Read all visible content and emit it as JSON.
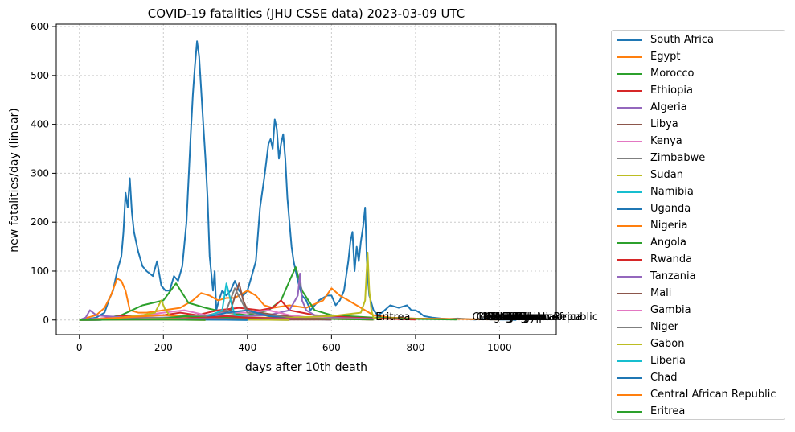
{
  "chart_data": {
    "type": "line",
    "title": "COVID-19 fatalities (JHU CSSE data) 2023-03-09 UTC",
    "xlabel": "days after 10th death",
    "ylabel": "new fatalities/day (linear)",
    "xlim": [
      -55,
      1135
    ],
    "ylim": [
      -30,
      605
    ],
    "xticks": [
      0,
      200,
      400,
      600,
      800,
      1000
    ],
    "yticks": [
      0,
      100,
      200,
      300,
      400,
      500,
      600
    ],
    "grid": true,
    "legend_position": "outside-right",
    "series": [
      {
        "name": "South Africa",
        "color": "#1f77b4",
        "x": [
          0,
          20,
          40,
          60,
          70,
          80,
          90,
          100,
          105,
          110,
          115,
          120,
          125,
          130,
          140,
          150,
          160,
          175,
          185,
          195,
          205,
          215,
          225,
          235,
          245,
          255,
          265,
          270,
          275,
          280,
          285,
          290,
          295,
          300,
          305,
          310,
          318,
          322,
          326,
          332,
          340,
          350,
          360,
          370,
          380,
          390,
          400,
          410,
          420,
          430,
          440,
          450,
          455,
          460,
          465,
          470,
          475,
          480,
          485,
          490,
          495,
          500,
          505,
          510,
          520,
          530,
          540,
          550,
          560,
          570,
          580,
          590,
          600,
          610,
          620,
          630,
          640,
          645,
          650,
          655,
          660,
          665,
          670,
          675,
          680,
          685,
          690,
          700,
          710,
          720,
          740,
          760,
          780,
          790,
          800,
          810,
          820,
          840,
          860,
          880,
          900,
          920,
          940,
          960,
          980,
          1000,
          1020,
          1040
        ],
        "y": [
          0,
          2,
          5,
          15,
          40,
          60,
          100,
          130,
          180,
          260,
          230,
          290,
          220,
          180,
          140,
          110,
          100,
          90,
          120,
          70,
          60,
          60,
          90,
          80,
          110,
          200,
          380,
          460,
          520,
          570,
          540,
          470,
          400,
          330,
          250,
          130,
          60,
          100,
          20,
          40,
          60,
          50,
          60,
          80,
          60,
          50,
          60,
          90,
          120,
          230,
          290,
          360,
          370,
          350,
          410,
          390,
          330,
          360,
          380,
          330,
          250,
          200,
          150,
          120,
          80,
          50,
          40,
          20,
          30,
          40,
          45,
          50,
          50,
          30,
          40,
          60,
          120,
          160,
          180,
          100,
          150,
          120,
          160,
          190,
          230,
          100,
          50,
          20,
          10,
          15,
          30,
          25,
          30,
          20,
          20,
          15,
          8,
          5,
          3,
          2,
          3,
          2,
          1,
          2,
          1,
          1,
          1,
          0
        ]
      },
      {
        "name": "Egypt",
        "color": "#ff7f0e",
        "x": [
          0,
          20,
          40,
          60,
          75,
          90,
          100,
          110,
          120,
          140,
          160,
          200,
          240,
          270,
          290,
          310,
          330,
          350,
          370,
          400,
          420,
          440,
          460,
          500,
          540,
          580,
          600,
          620,
          640,
          660,
          680,
          700,
          740,
          800,
          900,
          1000
        ],
        "y": [
          0,
          5,
          10,
          25,
          50,
          85,
          80,
          60,
          20,
          15,
          15,
          20,
          25,
          40,
          55,
          50,
          40,
          45,
          45,
          60,
          50,
          30,
          25,
          30,
          25,
          40,
          65,
          50,
          40,
          30,
          20,
          10,
          5,
          3,
          2,
          1
        ]
      },
      {
        "name": "Morocco",
        "color": "#2ca02c",
        "x": [
          0,
          50,
          100,
          150,
          200,
          230,
          260,
          300,
          350,
          400,
          450,
          480,
          500,
          515,
          530,
          560,
          600,
          700,
          800,
          900
        ],
        "y": [
          0,
          2,
          10,
          30,
          40,
          75,
          35,
          25,
          15,
          10,
          20,
          40,
          80,
          108,
          60,
          20,
          10,
          5,
          2,
          1
        ]
      },
      {
        "name": "Ethiopia",
        "color": "#d62728",
        "x": [
          0,
          50,
          100,
          150,
          200,
          240,
          280,
          330,
          380,
          430,
          460,
          480,
          500,
          530,
          560,
          600,
          650,
          700,
          800
        ],
        "y": [
          0,
          3,
          8,
          10,
          10,
          15,
          10,
          20,
          25,
          20,
          25,
          40,
          20,
          15,
          10,
          8,
          5,
          3,
          1
        ]
      },
      {
        "name": "Algeria",
        "color": "#9467bd",
        "x": [
          0,
          15,
          25,
          40,
          60,
          100,
          150,
          200,
          260,
          300,
          350,
          400,
          450,
          500,
          520,
          525,
          530,
          540,
          560,
          600,
          700
        ],
        "y": [
          0,
          5,
          20,
          10,
          8,
          6,
          5,
          5,
          8,
          10,
          10,
          8,
          10,
          20,
          50,
          95,
          40,
          20,
          10,
          5,
          2
        ]
      },
      {
        "name": "Libya",
        "color": "#8c564b",
        "x": [
          0,
          100,
          200,
          300,
          360,
          380,
          390,
          400,
          430,
          470,
          500,
          550,
          600,
          700
        ],
        "y": [
          0,
          2,
          3,
          5,
          20,
          75,
          40,
          20,
          15,
          10,
          8,
          5,
          3,
          1
        ]
      },
      {
        "name": "Kenya",
        "color": "#e377c2",
        "x": [
          0,
          50,
          100,
          150,
          200,
          250,
          300,
          350,
          400,
          450,
          500,
          550,
          600,
          650,
          700
        ],
        "y": [
          0,
          3,
          5,
          10,
          15,
          20,
          10,
          15,
          15,
          20,
          10,
          5,
          3,
          2,
          1
        ]
      },
      {
        "name": "Zimbabwe",
        "color": "#7f7f7f",
        "x": [
          0,
          100,
          200,
          300,
          350,
          370,
          385,
          400,
          450,
          500,
          550,
          600,
          700
        ],
        "y": [
          0,
          2,
          5,
          8,
          20,
          65,
          40,
          15,
          10,
          5,
          3,
          2,
          1
        ]
      },
      {
        "name": "Sudan",
        "color": "#bcbd22",
        "x": [
          0,
          50,
          100,
          150,
          180,
          195,
          205,
          215,
          250,
          300,
          400,
          500,
          600,
          670,
          680,
          686,
          690,
          695,
          700,
          720
        ],
        "y": [
          0,
          2,
          5,
          10,
          15,
          40,
          20,
          10,
          5,
          5,
          5,
          5,
          8,
          15,
          40,
          138,
          60,
          20,
          5,
          1
        ]
      },
      {
        "name": "Namibia",
        "color": "#17becf",
        "x": [
          0,
          100,
          200,
          300,
          340,
          350,
          360,
          370,
          400,
          500,
          600
        ],
        "y": [
          0,
          1,
          2,
          5,
          20,
          75,
          40,
          10,
          5,
          2,
          1
        ]
      },
      {
        "name": "Uganda",
        "color": "#1f77b4",
        "x": [
          0,
          100,
          200,
          300,
          350,
          400,
          450,
          500,
          600
        ],
        "y": [
          0,
          1,
          2,
          5,
          15,
          20,
          8,
          3,
          1
        ]
      },
      {
        "name": "Nigeria",
        "color": "#ff7f0e",
        "x": [
          0,
          50,
          100,
          200,
          250,
          300,
          400,
          500,
          600,
          700
        ],
        "y": [
          0,
          2,
          5,
          10,
          8,
          5,
          4,
          3,
          2,
          1
        ]
      },
      {
        "name": "Angola",
        "color": "#2ca02c",
        "x": [
          0,
          100,
          200,
          250,
          300,
          400,
          500,
          600,
          700
        ],
        "y": [
          0,
          1,
          3,
          8,
          5,
          4,
          3,
          2,
          1
        ]
      },
      {
        "name": "Rwanda",
        "color": "#d62728",
        "x": [
          0,
          100,
          200,
          300,
          350,
          400,
          500,
          600
        ],
        "y": [
          0,
          1,
          2,
          5,
          8,
          5,
          3,
          1
        ]
      },
      {
        "name": "Tanzania",
        "color": "#9467bd",
        "x": [
          0,
          100,
          200,
          300,
          400,
          500,
          600
        ],
        "y": [
          0,
          1,
          2,
          3,
          2,
          2,
          1
        ]
      },
      {
        "name": "Mali",
        "color": "#8c564b",
        "x": [
          0,
          100,
          200,
          300,
          400,
          500,
          600
        ],
        "y": [
          0,
          1,
          2,
          2,
          2,
          1,
          1
        ]
      },
      {
        "name": "Gambia",
        "color": "#e377c2",
        "x": [
          0,
          100,
          200,
          300,
          400,
          500
        ],
        "y": [
          0,
          1,
          2,
          1,
          1,
          1
        ]
      },
      {
        "name": "Niger",
        "color": "#7f7f7f",
        "x": [
          0,
          100,
          200,
          300,
          400,
          500
        ],
        "y": [
          0,
          1,
          1,
          1,
          1,
          0
        ]
      },
      {
        "name": "Gabon",
        "color": "#bcbd22",
        "x": [
          0,
          100,
          200,
          300,
          400,
          500
        ],
        "y": [
          0,
          1,
          2,
          1,
          1,
          0
        ]
      },
      {
        "name": "Liberia",
        "color": "#17becf",
        "x": [
          0,
          100,
          200,
          300,
          400
        ],
        "y": [
          0,
          1,
          1,
          1,
          0
        ]
      },
      {
        "name": "Chad",
        "color": "#1f77b4",
        "x": [
          0,
          100,
          200,
          300,
          400
        ],
        "y": [
          0,
          1,
          1,
          1,
          0
        ]
      },
      {
        "name": "Central African Republic",
        "color": "#ff7f0e",
        "x": [
          0,
          100,
          200,
          300
        ],
        "y": [
          0,
          1,
          1,
          0
        ]
      },
      {
        "name": "Eritrea",
        "color": "#2ca02c",
        "x": [
          0,
          100,
          200,
          300
        ],
        "y": [
          0,
          1,
          1,
          0
        ]
      }
    ],
    "annotations": [
      {
        "text": "Eritrea",
        "x": 705,
        "y": 0
      },
      {
        "text": "Central African Republic",
        "x": 935,
        "y": 0
      },
      {
        "text": "Chad",
        "x": 945,
        "y": 0
      },
      {
        "text": "Liberia",
        "x": 950,
        "y": 0
      },
      {
        "text": "Gabon",
        "x": 955,
        "y": 0
      },
      {
        "text": "Niger",
        "x": 960,
        "y": 0
      },
      {
        "text": "Gambia",
        "x": 965,
        "y": 0
      },
      {
        "text": "Mali",
        "x": 970,
        "y": 0
      },
      {
        "text": "Tanzania",
        "x": 975,
        "y": 0
      },
      {
        "text": "Rwanda",
        "x": 980,
        "y": 0
      },
      {
        "text": "Angola",
        "x": 985,
        "y": 0
      },
      {
        "text": "Nigeria",
        "x": 990,
        "y": 0
      },
      {
        "text": "Uganda",
        "x": 995,
        "y": 0
      },
      {
        "text": "Namibia",
        "x": 1000,
        "y": 0
      },
      {
        "text": "Sudan",
        "x": 1005,
        "y": 0
      },
      {
        "text": "Zimbabwe",
        "x": 1010,
        "y": 0
      },
      {
        "text": "Kenya",
        "x": 1015,
        "y": 0
      },
      {
        "text": "Libya",
        "x": 1020,
        "y": 0
      },
      {
        "text": "Algeria",
        "x": 1025,
        "y": 0
      },
      {
        "text": "Ethiopia",
        "x": 1030,
        "y": 0
      },
      {
        "text": "Morocco",
        "x": 1035,
        "y": 0
      },
      {
        "text": "Egypt",
        "x": 1040,
        "y": 0
      },
      {
        "text": "South Africa",
        "x": 1045,
        "y": 0
      }
    ]
  }
}
